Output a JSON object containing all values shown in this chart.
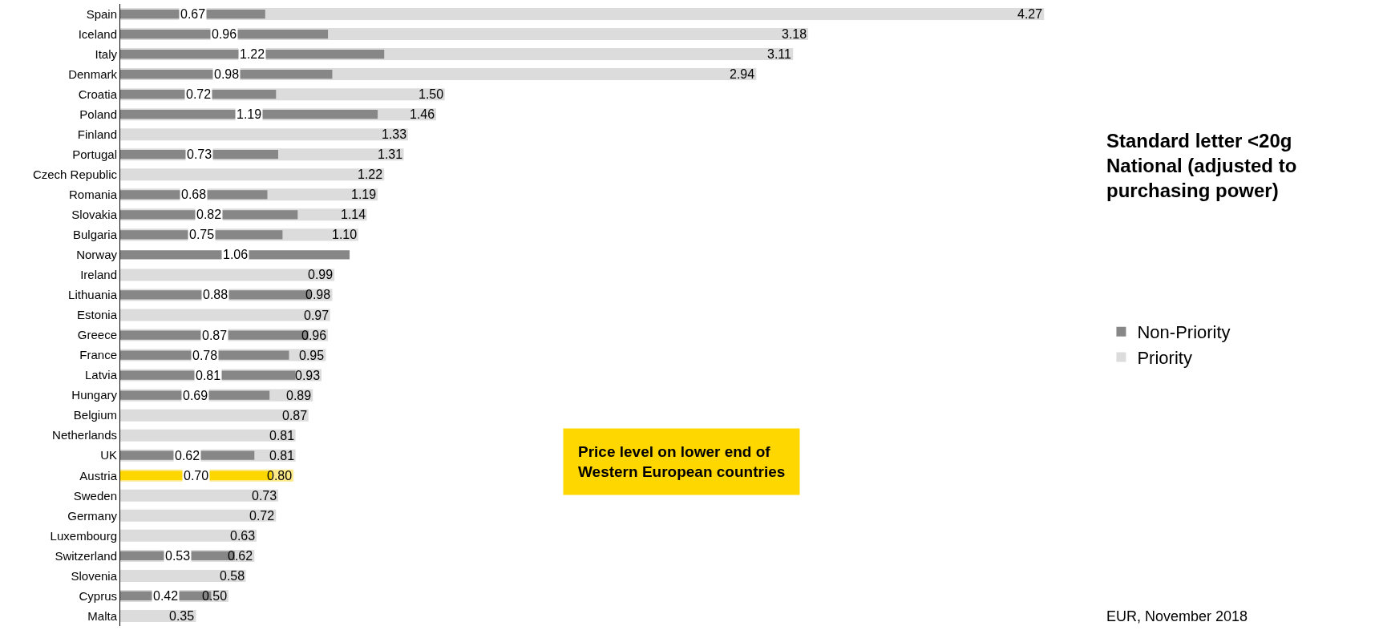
{
  "chart_data": {
    "type": "bar",
    "orientation": "horizontal",
    "title": "Standard letter <20g National (adjusted to purchasing power)",
    "categories": [
      "Spain",
      "Iceland",
      "Italy",
      "Denmark",
      "Croatia",
      "Poland",
      "Finland",
      "Portugal",
      "Czech Republic",
      "Romania",
      "Slovakia",
      "Bulgaria",
      "Norway",
      "Ireland",
      "Lithuania",
      "Estonia",
      "Greece",
      "France",
      "Latvia",
      "Hungary",
      "Belgium",
      "Netherlands",
      "UK",
      "Austria",
      "Sweden",
      "Germany",
      "Luxembourg",
      "Switzerland",
      "Slovenia",
      "Cyprus",
      "Malta"
    ],
    "series": [
      {
        "name": "Priority",
        "colors": [
          "#dcdcdc",
          "#dcdcdc",
          "#dcdcdc",
          "#dcdcdc",
          "#dcdcdc",
          "#dcdcdc",
          "#dcdcdc",
          "#dcdcdc",
          "#dcdcdc",
          "#dcdcdc",
          "#dcdcdc",
          "#dcdcdc",
          "#dcdcdc",
          "#dcdcdc",
          "#dcdcdc",
          "#dcdcdc",
          "#dcdcdc",
          "#dcdcdc",
          "#dcdcdc",
          "#dcdcdc",
          "#dcdcdc",
          "#dcdcdc",
          "#dcdcdc",
          "#fde98a",
          "#dcdcdc",
          "#dcdcdc",
          "#dcdcdc",
          "#dcdcdc",
          "#dcdcdc",
          "#dcdcdc",
          "#dcdcdc"
        ],
        "values": [
          4.27,
          3.18,
          3.11,
          2.94,
          1.5,
          1.46,
          1.33,
          1.31,
          1.22,
          1.19,
          1.14,
          1.1,
          null,
          0.99,
          0.98,
          0.97,
          0.96,
          0.95,
          0.93,
          0.89,
          0.87,
          0.81,
          0.81,
          0.8,
          0.73,
          0.72,
          0.63,
          0.62,
          0.58,
          0.5,
          0.35
        ],
        "value_labels": [
          "4.27",
          "3.18",
          "3.11",
          "2.94",
          "1.50",
          "1.46",
          "1.33",
          "1.31",
          "1.22",
          "1.19",
          "1.14",
          "1.10",
          null,
          "0.99",
          "0.98",
          "0.97",
          "0.96",
          "0.95",
          "0.93",
          "0.89",
          "0.87",
          "0.81",
          "0.81",
          "0.80",
          "0.73",
          "0.72",
          "0.63",
          "0.62",
          "0.58",
          "0.50",
          "0.35"
        ]
      },
      {
        "name": "Non-Priority",
        "colors": [
          "#878787",
          "#878787",
          "#878787",
          "#878787",
          "#878787",
          "#878787",
          "#878787",
          "#878787",
          "#878787",
          "#878787",
          "#878787",
          "#878787",
          "#878787",
          "#878787",
          "#878787",
          "#878787",
          "#878787",
          "#878787",
          "#878787",
          "#878787",
          "#878787",
          "#878787",
          "#878787",
          "#ffd700",
          "#878787",
          "#878787",
          "#878787",
          "#878787",
          "#878787",
          "#878787",
          "#878787"
        ],
        "values": [
          0.67,
          0.96,
          1.22,
          0.98,
          0.72,
          1.19,
          null,
          0.73,
          null,
          0.68,
          0.82,
          0.75,
          1.06,
          null,
          0.88,
          null,
          0.87,
          0.78,
          0.81,
          0.69,
          null,
          null,
          0.62,
          0.7,
          null,
          null,
          null,
          0.53,
          null,
          0.42,
          null
        ],
        "value_labels": [
          "0.67",
          "0.96",
          "1.22",
          "0.98",
          "0.72",
          "1.19",
          null,
          "0.73",
          null,
          "0.68",
          "0.82",
          "0.75",
          "1.06",
          null,
          "0.88",
          null,
          "0.87",
          "0.78",
          "0.81",
          "0.69",
          null,
          null,
          "0.62",
          "0.70",
          null,
          null,
          null,
          "0.53",
          null,
          "0.42",
          null
        ]
      }
    ],
    "tick_labels": "y",
    "legend": "right",
    "annotations": [
      "Price level on lower end of Western European countries",
      "EUR, November 2018"
    ]
  }
}
